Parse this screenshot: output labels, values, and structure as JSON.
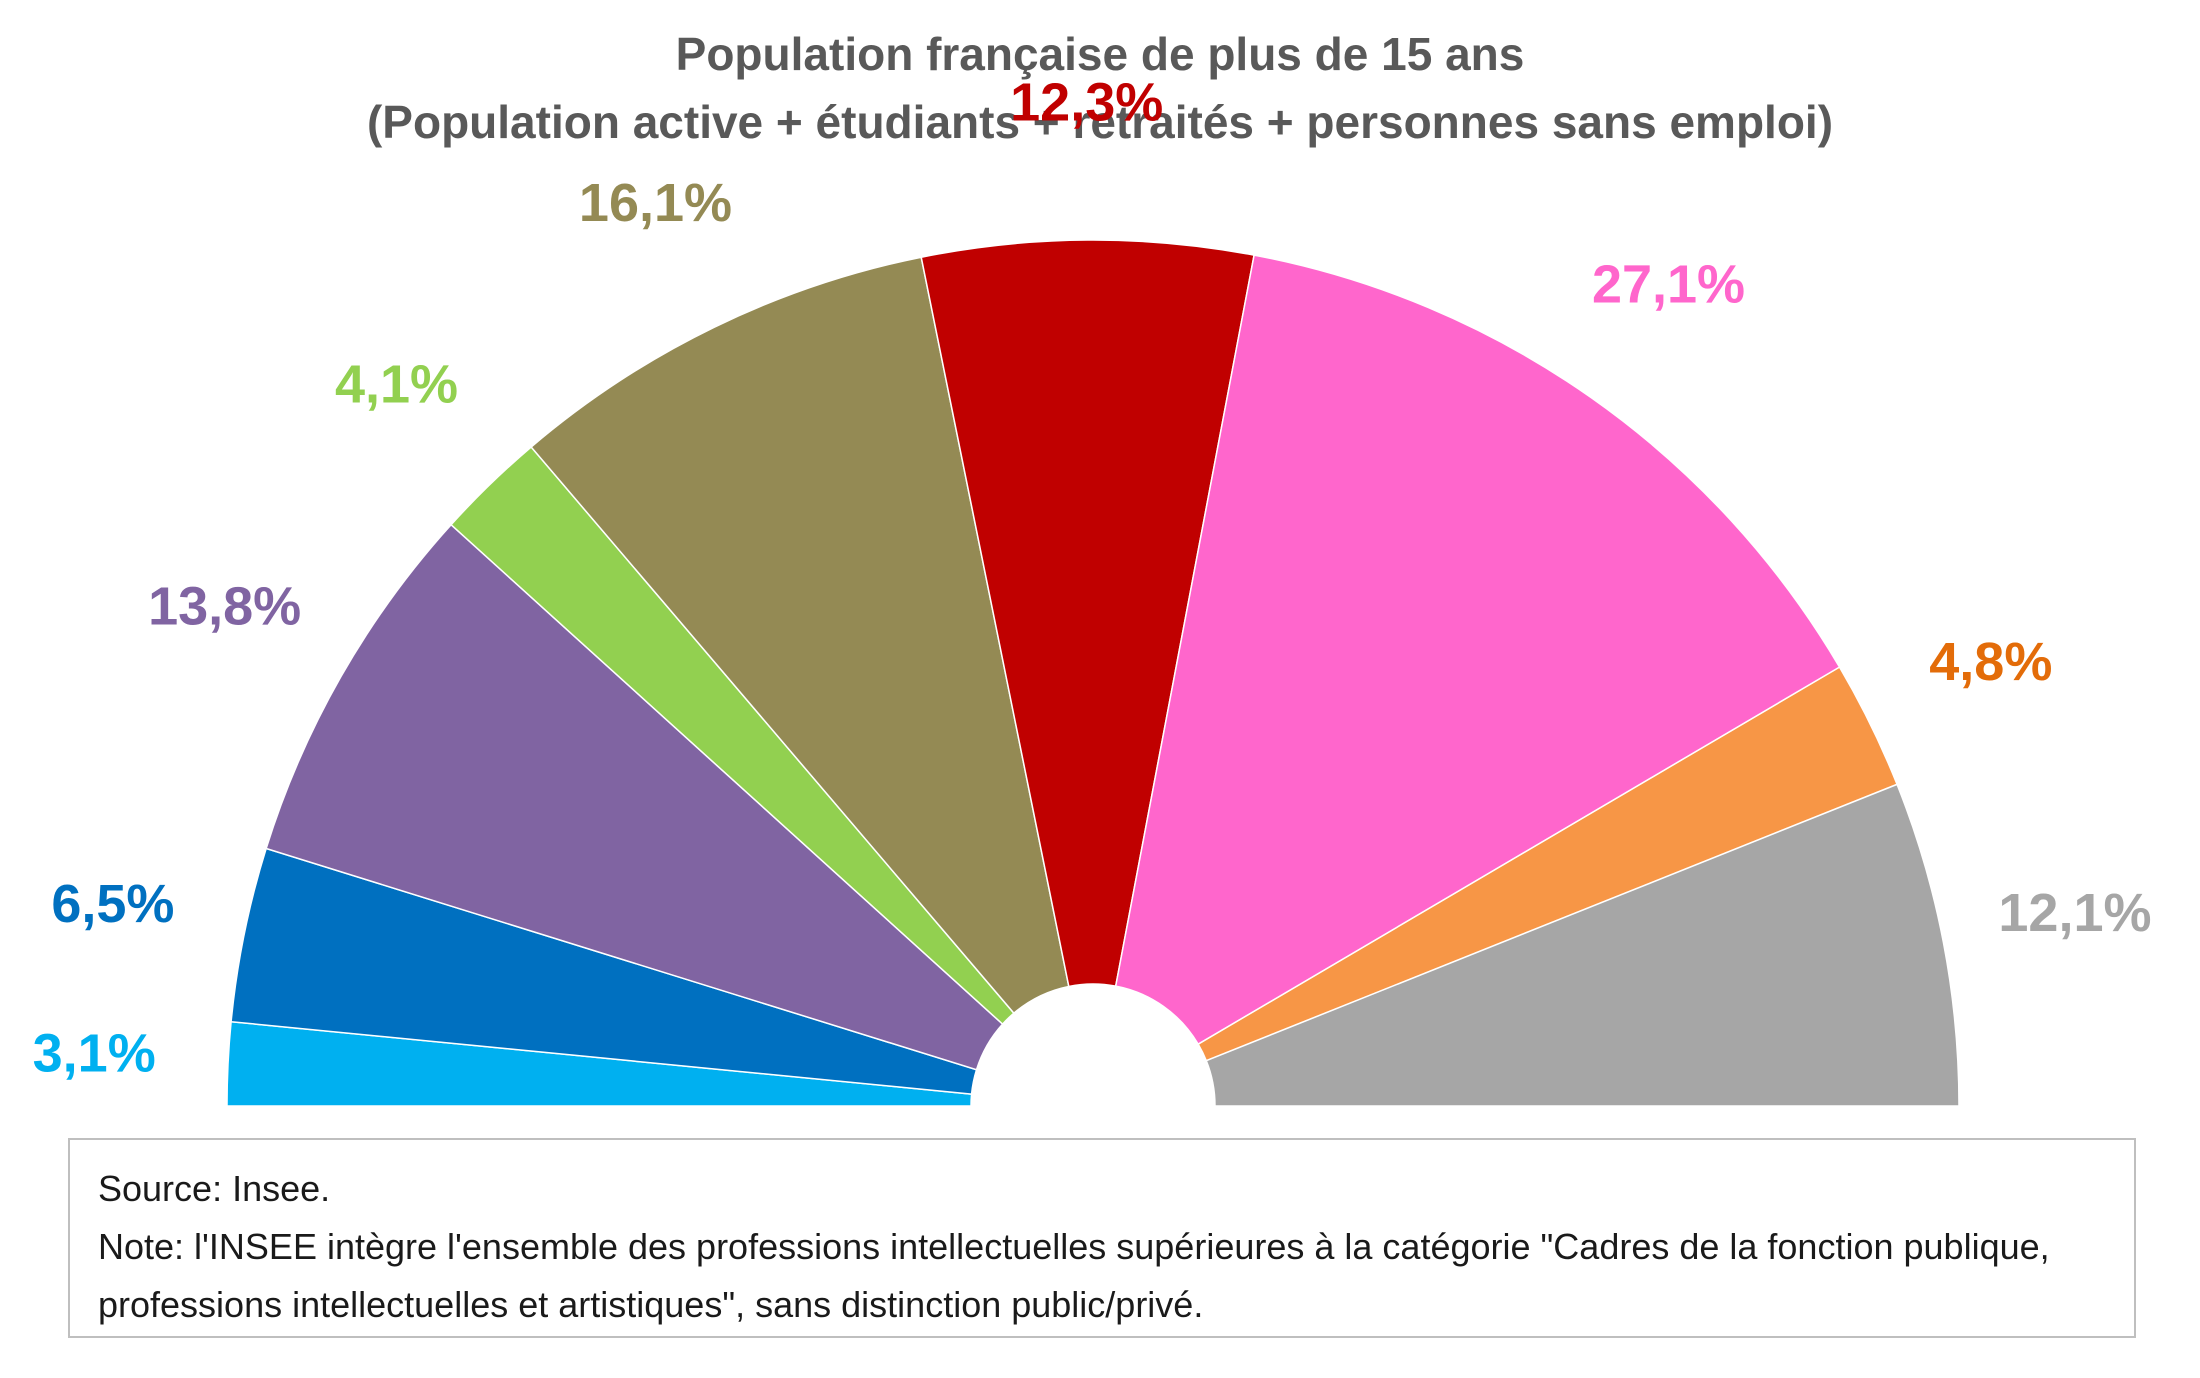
{
  "chart_data": {
    "type": "pie",
    "variant": "semicircle-donut",
    "title": "Population française de plus de 15 ans",
    "subtitle": "(Population active + étudiants + retraités + personnes sans emploi)",
    "slices": [
      {
        "label": "3,1%",
        "value": 3.1,
        "color": "#00B0F0",
        "label_color": "#00B0F0"
      },
      {
        "label": "6,5%",
        "value": 6.5,
        "color": "#0070C0",
        "label_color": "#0070C0"
      },
      {
        "label": "13,8%",
        "value": 13.8,
        "color": "#8064A2",
        "label_color": "#8064A2"
      },
      {
        "label": "4,1%",
        "value": 4.1,
        "color": "#92D050",
        "label_color": "#92D050"
      },
      {
        "label": "16,1%",
        "value": 16.1,
        "color": "#948A54",
        "label_color": "#948A54"
      },
      {
        "label": "12,3%",
        "value": 12.3,
        "color": "#C00000",
        "label_color": "#C00000"
      },
      {
        "label": "27,1%",
        "value": 27.1,
        "color": "#FF66CC",
        "label_color": "#FF66CC"
      },
      {
        "label": "4,8%",
        "value": 4.8,
        "color": "#F79646",
        "label_color": "#E36C09"
      },
      {
        "label": "12,1%",
        "value": 12.1,
        "color": "#A6A6A6",
        "label_color": "#A6A6A6"
      }
    ]
  },
  "note_box": {
    "source": "Source: Insee.",
    "note": "Note: l'INSEE intègre l'ensemble des professions intellectuelles supérieures à la catégorie \"Cadres de la fonction publique, professions intellectuelles et artistiques\", sans distinction public/privé."
  }
}
